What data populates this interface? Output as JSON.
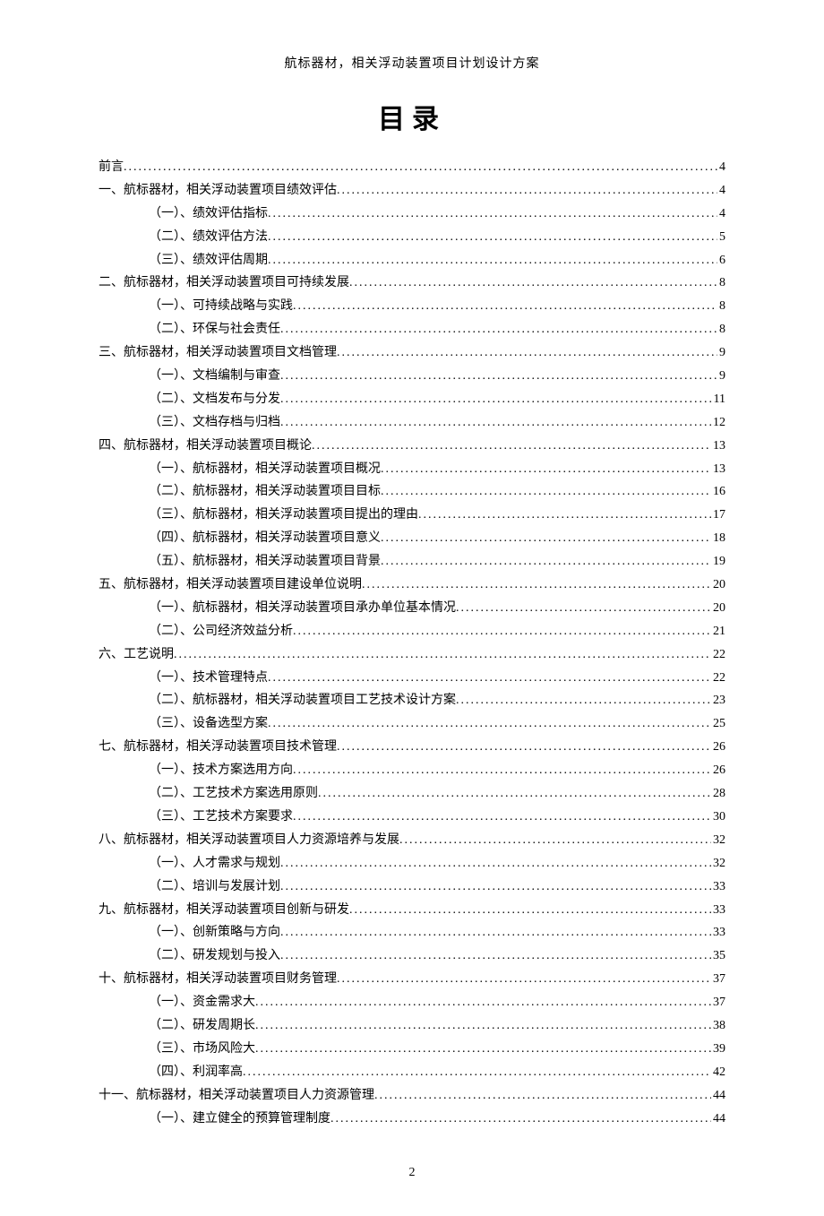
{
  "header": "航标器材，相关浮动装置项目计划设计方案",
  "title": "目录",
  "page_number": "2",
  "font": {
    "body_family": "SimSun",
    "body_size_pt": 10.5,
    "title_size_pt": 22,
    "title_weight": "bold",
    "color": "#000000",
    "background": "#ffffff"
  },
  "toc": [
    {
      "level": 0,
      "label": "前言",
      "page": "4"
    },
    {
      "level": 0,
      "label": "一、航标器材，相关浮动装置项目绩效评估",
      "page": "4"
    },
    {
      "level": 1,
      "label": "（一）、绩效评估指标",
      "page": "4"
    },
    {
      "level": 1,
      "label": "（二）、绩效评估方法",
      "page": "5"
    },
    {
      "level": 1,
      "label": "（三）、绩效评估周期",
      "page": "6"
    },
    {
      "level": 0,
      "label": "二、航标器材，相关浮动装置项目可持续发展",
      "page": "8"
    },
    {
      "level": 1,
      "label": "（一）、可持续战略与实践",
      "page": "8"
    },
    {
      "level": 1,
      "label": "（二）、环保与社会责任",
      "page": "8"
    },
    {
      "level": 0,
      "label": "三、航标器材，相关浮动装置项目文档管理",
      "page": "9"
    },
    {
      "level": 1,
      "label": "（一）、文档编制与审查",
      "page": "9"
    },
    {
      "level": 1,
      "label": "（二）、文档发布与分发",
      "page": "11"
    },
    {
      "level": 1,
      "label": "（三）、文档存档与归档",
      "page": "12"
    },
    {
      "level": 0,
      "label": "四、航标器材，相关浮动装置项目概论",
      "page": "13"
    },
    {
      "level": 1,
      "label": "（一）、航标器材，相关浮动装置项目概况",
      "page": "13"
    },
    {
      "level": 1,
      "label": "（二）、航标器材，相关浮动装置项目目标",
      "page": "16"
    },
    {
      "level": 1,
      "label": "（三）、航标器材，相关浮动装置项目提出的理由",
      "page": "17"
    },
    {
      "level": 1,
      "label": "（四）、航标器材，相关浮动装置项目意义",
      "page": "18"
    },
    {
      "level": 1,
      "label": "（五）、航标器材，相关浮动装置项目背景",
      "page": "19"
    },
    {
      "level": 0,
      "label": "五、航标器材，相关浮动装置项目建设单位说明",
      "page": "20"
    },
    {
      "level": 1,
      "label": "（一）、航标器材，相关浮动装置项目承办单位基本情况",
      "page": "20"
    },
    {
      "level": 1,
      "label": "（二）、公司经济效益分析",
      "page": "21"
    },
    {
      "level": 0,
      "label": "六、工艺说明",
      "page": "22"
    },
    {
      "level": 1,
      "label": "（一）、技术管理特点",
      "page": "22"
    },
    {
      "level": 1,
      "label": "（二）、航标器材，相关浮动装置项目工艺技术设计方案",
      "page": "23"
    },
    {
      "level": 1,
      "label": "（三）、设备选型方案",
      "page": "25"
    },
    {
      "level": 0,
      "label": "七、航标器材，相关浮动装置项目技术管理",
      "page": "26"
    },
    {
      "level": 1,
      "label": "（一）、技术方案选用方向",
      "page": "26"
    },
    {
      "level": 1,
      "label": "（二）、工艺技术方案选用原则",
      "page": "28"
    },
    {
      "level": 1,
      "label": "（三）、工艺技术方案要求",
      "page": "30"
    },
    {
      "level": 0,
      "label": "八、航标器材，相关浮动装置项目人力资源培养与发展",
      "page": "32"
    },
    {
      "level": 1,
      "label": "（一）、人才需求与规划",
      "page": "32"
    },
    {
      "level": 1,
      "label": "（二）、培训与发展计划",
      "page": "33"
    },
    {
      "level": 0,
      "label": "九、航标器材，相关浮动装置项目创新与研发",
      "page": "33"
    },
    {
      "level": 1,
      "label": "（一）、创新策略与方向",
      "page": "33"
    },
    {
      "level": 1,
      "label": "（二）、研发规划与投入",
      "page": "35"
    },
    {
      "level": 0,
      "label": "十、航标器材，相关浮动装置项目财务管理",
      "page": "37"
    },
    {
      "level": 1,
      "label": "（一）、资金需求大",
      "page": "37"
    },
    {
      "level": 1,
      "label": "（二）、研发周期长",
      "page": "38"
    },
    {
      "level": 1,
      "label": "（三）、市场风险大",
      "page": "39"
    },
    {
      "level": 1,
      "label": "（四）、利润率高",
      "page": "42"
    },
    {
      "level": 0,
      "label": "十一、航标器材，相关浮动装置项目人力资源管理",
      "page": "44"
    },
    {
      "level": 1,
      "label": "（一）、建立健全的预算管理制度",
      "page": "44"
    }
  ]
}
